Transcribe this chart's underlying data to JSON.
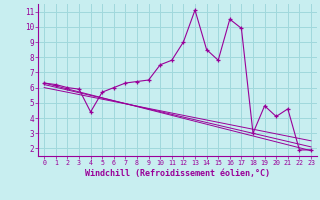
{
  "title": "",
  "xlabel": "Windchill (Refroidissement éolien,°C)",
  "ylabel": "",
  "background_color": "#c8eef0",
  "grid_color": "#a0d8dc",
  "line_color": "#990099",
  "tick_color": "#990099",
  "xlim": [
    -0.5,
    23.5
  ],
  "ylim": [
    1.5,
    11.5
  ],
  "yticks": [
    2,
    3,
    4,
    5,
    6,
    7,
    8,
    9,
    10,
    11
  ],
  "xticks": [
    0,
    1,
    2,
    3,
    4,
    5,
    6,
    7,
    8,
    9,
    10,
    11,
    12,
    13,
    14,
    15,
    16,
    17,
    18,
    19,
    20,
    21,
    22,
    23
  ],
  "main_series_x": [
    0,
    1,
    2,
    3,
    4,
    5,
    6,
    7,
    8,
    9,
    10,
    11,
    12,
    13,
    14,
    15,
    16,
    17,
    18,
    19,
    20,
    21,
    22,
    23
  ],
  "main_series_y": [
    6.3,
    6.2,
    6.0,
    5.9,
    4.4,
    5.7,
    6.0,
    6.3,
    6.4,
    6.5,
    7.5,
    7.8,
    9.0,
    11.1,
    8.5,
    7.8,
    10.5,
    9.9,
    3.0,
    4.8,
    4.1,
    4.6,
    1.9,
    1.9
  ],
  "trend_lines": [
    {
      "x": [
        0,
        23
      ],
      "y": [
        6.3,
        1.85
      ]
    },
    {
      "x": [
        0,
        23
      ],
      "y": [
        6.2,
        2.1
      ]
    },
    {
      "x": [
        0,
        23
      ],
      "y": [
        6.0,
        2.5
      ]
    }
  ]
}
